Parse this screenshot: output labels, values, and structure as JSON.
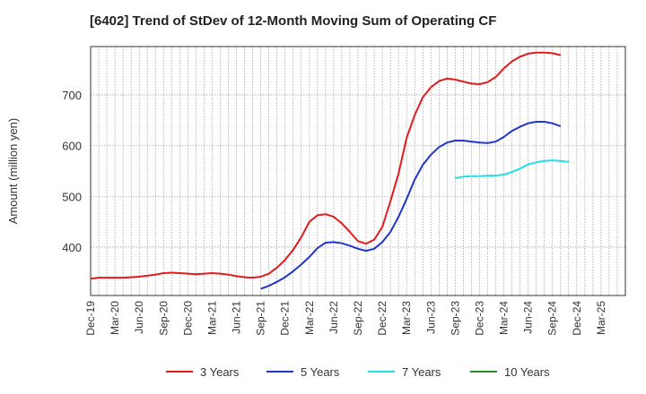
{
  "chart_data": {
    "type": "line",
    "title": "[6402]  Trend of StDev of 12-Month Moving Sum of Operating CF",
    "ylabel": "Amount (million yen)",
    "xlabel": "",
    "ylim": [
      305,
      795
    ],
    "yticks": [
      400,
      500,
      600,
      700
    ],
    "grid": true,
    "legend_position": "bottom",
    "x_tick_labels": [
      "Dec-19",
      "Mar-20",
      "Jun-20",
      "Sep-20",
      "Dec-20",
      "Mar-21",
      "Jun-21",
      "Sep-21",
      "Dec-21",
      "Mar-22",
      "Jun-22",
      "Sep-22",
      "Dec-22",
      "Mar-23",
      "Jun-23",
      "Sep-23",
      "Dec-23",
      "Mar-24",
      "Jun-24",
      "Sep-24",
      "Dec-24",
      "Mar-25"
    ],
    "x_months": [
      "Dec-19",
      "Jan-20",
      "Feb-20",
      "Mar-20",
      "Apr-20",
      "May-20",
      "Jun-20",
      "Jul-20",
      "Aug-20",
      "Sep-20",
      "Oct-20",
      "Nov-20",
      "Dec-20",
      "Jan-21",
      "Feb-21",
      "Mar-21",
      "Apr-21",
      "May-21",
      "Jun-21",
      "Jul-21",
      "Aug-21",
      "Sep-21",
      "Oct-21",
      "Nov-21",
      "Dec-21",
      "Jan-22",
      "Feb-22",
      "Mar-22",
      "Apr-22",
      "May-22",
      "Jun-22",
      "Jul-22",
      "Aug-22",
      "Sep-22",
      "Oct-22",
      "Nov-22",
      "Dec-22",
      "Jan-23",
      "Feb-23",
      "Mar-23",
      "Apr-23",
      "May-23",
      "Jun-23",
      "Jul-23",
      "Aug-23",
      "Sep-23",
      "Oct-23",
      "Nov-23",
      "Dec-23",
      "Jan-24",
      "Feb-24",
      "Mar-24",
      "Apr-24",
      "May-24",
      "Jun-24",
      "Jul-24",
      "Aug-24",
      "Sep-24",
      "Oct-24",
      "Nov-24",
      "Dec-24",
      "Jan-25",
      "Feb-25",
      "Mar-25",
      "Apr-25",
      "May-25",
      "Jun-25"
    ],
    "series": [
      {
        "name": "3 Years",
        "color": "#e31a1c",
        "start": "Dec-19",
        "values": [
          338,
          340,
          340,
          340,
          340,
          341,
          342,
          344,
          346,
          349,
          350,
          349,
          348,
          347,
          348,
          349,
          348,
          346,
          343,
          341,
          340,
          342,
          348,
          360,
          375,
          395,
          420,
          450,
          463,
          465,
          460,
          447,
          430,
          412,
          407,
          415,
          440,
          490,
          545,
          615,
          660,
          695,
          715,
          727,
          732,
          730,
          726,
          722,
          721,
          725,
          735,
          752,
          766,
          775,
          781,
          783,
          783,
          782,
          778
        ]
      },
      {
        "name": "5 Years",
        "color": "#1f35cc",
        "start": "Sep-21",
        "values": [
          318,
          324,
          332,
          341,
          353,
          366,
          381,
          398,
          409,
          410,
          408,
          403,
          397,
          393,
          397,
          410,
          430,
          460,
          495,
          533,
          562,
          582,
          597,
          606,
          610,
          610,
          608,
          606,
          605,
          608,
          617,
          629,
          637,
          644,
          647,
          647,
          644,
          638
        ]
      },
      {
        "name": "7 Years",
        "color": "#22e0e6",
        "start": "Sep-23",
        "values": [
          536,
          539,
          540,
          540,
          541,
          541,
          543,
          548,
          555,
          563,
          567,
          570,
          571,
          570,
          568
        ]
      },
      {
        "name": "10 Years",
        "color": "#2a8a2a",
        "start": "Sep-23",
        "values": []
      }
    ]
  }
}
